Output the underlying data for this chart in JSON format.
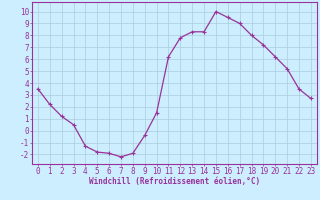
{
  "x": [
    0,
    1,
    2,
    3,
    4,
    5,
    6,
    7,
    8,
    9,
    10,
    11,
    12,
    13,
    14,
    15,
    16,
    17,
    18,
    19,
    20,
    21,
    22,
    23
  ],
  "y": [
    3.5,
    2.2,
    1.2,
    0.5,
    -1.3,
    -1.8,
    -1.9,
    -2.2,
    -1.9,
    -0.4,
    1.5,
    6.2,
    7.8,
    8.3,
    8.3,
    10.0,
    9.5,
    9.0,
    8.0,
    7.2,
    6.2,
    5.2,
    3.5,
    2.7
  ],
  "line_color": "#993399",
  "marker": "+",
  "markersize": 3,
  "linewidth": 0.9,
  "background_color": "#cceeff",
  "grid_color": "#aaccdd",
  "axis_color": "#993399",
  "xlabel": "Windchill (Refroidissement éolien,°C)",
  "xlabel_fontsize": 5.5,
  "ylabel_ticks": [
    -2,
    -1,
    0,
    1,
    2,
    3,
    4,
    5,
    6,
    7,
    8,
    9,
    10
  ],
  "ylim": [
    -2.8,
    10.8
  ],
  "xlim": [
    -0.5,
    23.5
  ],
  "tick_fontsize": 5.5,
  "spine_color": "#993399",
  "markeredgewidth": 0.8
}
